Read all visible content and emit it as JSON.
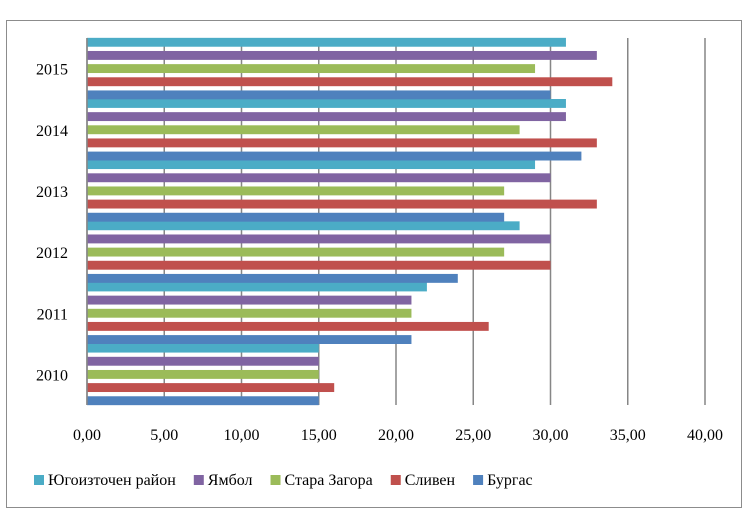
{
  "chart_data": {
    "type": "bar",
    "orientation": "horizontal",
    "categories": [
      "2010",
      "2011",
      "2012",
      "2013",
      "2014",
      "2015"
    ],
    "series": [
      {
        "name": "Бургас",
        "color": "#4f81bd",
        "values": [
          15,
          21,
          24,
          27,
          32,
          30
        ]
      },
      {
        "name": "Сливен",
        "color": "#c0504d",
        "values": [
          16,
          26,
          30,
          33,
          33,
          34
        ]
      },
      {
        "name": "Стара Загора",
        "color": "#9bbb59",
        "values": [
          15,
          21,
          27,
          27,
          28,
          29
        ]
      },
      {
        "name": "Ямбол",
        "color": "#8064a2",
        "values": [
          15,
          21,
          30,
          30,
          31,
          33
        ]
      },
      {
        "name": "Югоизточен район",
        "color": "#4bacc6",
        "values": [
          15,
          22,
          28,
          29,
          31,
          31
        ]
      }
    ],
    "x_ticks": [
      "0,00",
      "5,00",
      "10,00",
      "15,00",
      "20,00",
      "25,00",
      "30,00",
      "35,00",
      "40,00"
    ],
    "xlim": [
      0,
      40
    ],
    "grid": true,
    "legend_position": "bottom",
    "legend_order": [
      "Югоизточен район",
      "Ямбол",
      "Стара Загора",
      "Сливен",
      "Бургас"
    ]
  }
}
